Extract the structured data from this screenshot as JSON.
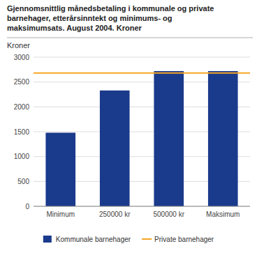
{
  "chart_data": {
    "type": "bar",
    "title": "Gjennomsnittlig månedsbetaling i kommunale og private\nbarnehager, etterårsinntekt og minimums- og\nmaksimumsats. August 2004. Kroner",
    "y_label": "Kroner",
    "categories": [
      "Minimum",
      "250000 kr",
      "500000 kr",
      "Maksimum"
    ],
    "series": [
      {
        "name": "Kommunale barnehager",
        "type": "bar",
        "color": "#1a3a8c",
        "values": [
          1480,
          2330,
          2720,
          2720
        ]
      },
      {
        "name": "Private barnehager",
        "type": "hline",
        "color": "#f5a623",
        "value": 2680
      }
    ],
    "ylim": [
      0,
      3000
    ],
    "yticks": [
      0,
      500,
      1000,
      1500,
      2000,
      2500,
      3000
    ],
    "grid": true,
    "legend": "bottom"
  }
}
